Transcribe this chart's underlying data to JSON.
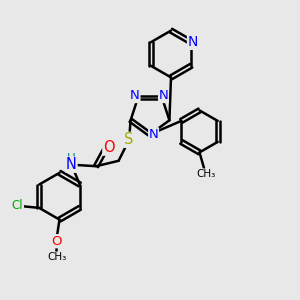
{
  "bg_color": "#e8e8e8",
  "bond_color": "#000000",
  "bond_width": 1.8,
  "atom_colors": {
    "N": "#0000FF",
    "S": "#AAAA00",
    "O": "#FF0000",
    "Cl": "#00AA00",
    "H": "#008080",
    "C": "#000000"
  },
  "font_size": 8.5,
  "fig_size": [
    3.0,
    3.0
  ],
  "dpi": 100
}
